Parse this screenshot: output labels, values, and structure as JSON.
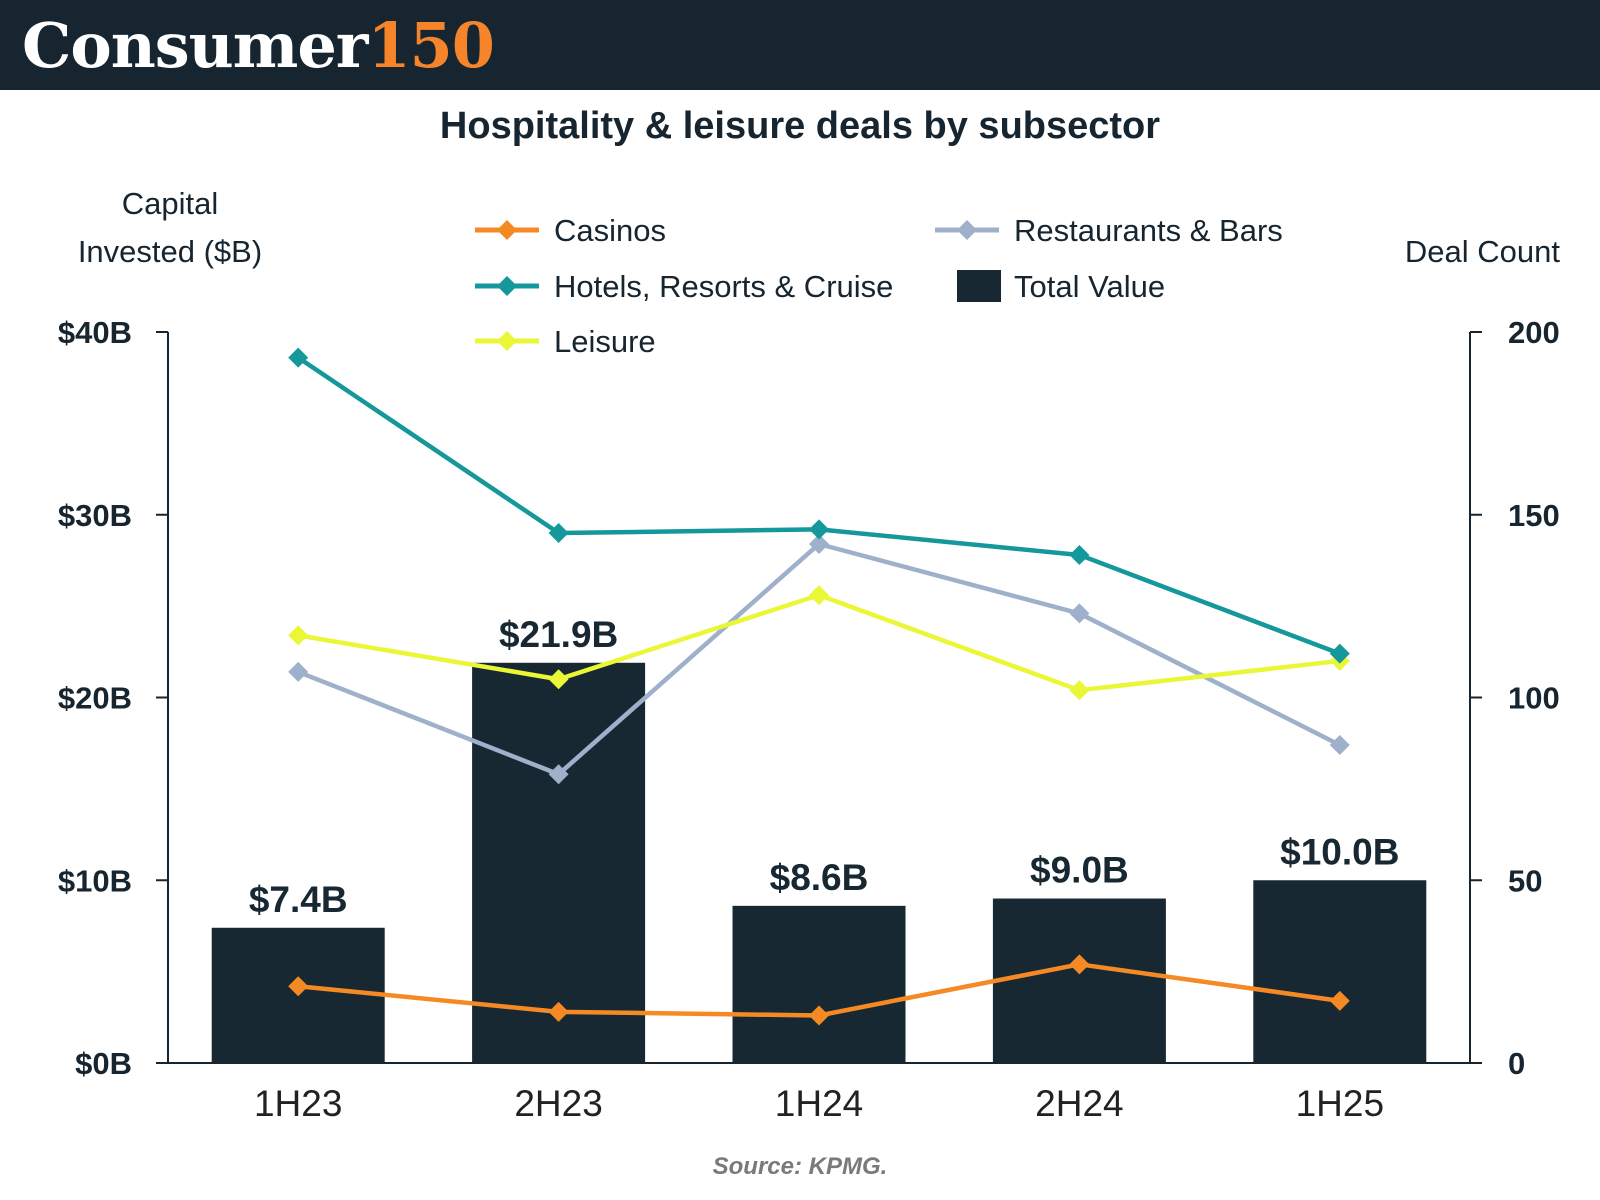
{
  "header": {
    "brand_name": "Consumer",
    "brand_number": "150"
  },
  "colors": {
    "header_bg": "#16252f",
    "brand_accent": "#f5842a",
    "bar": "#172833",
    "casinos": "#f58a24",
    "hotels": "#14989b",
    "leisure": "#eaf736",
    "restaurants": "#9fb0ca",
    "axis": "#16252f",
    "source": "#7a7a7a"
  },
  "chart_data": {
    "type": "bar",
    "title": "Hospitality & leisure deals by subsector",
    "left_axis_title_line1": "Capital",
    "left_axis_title_line2": "Invested ($B)",
    "right_axis_title": "Deal Count",
    "categories": [
      "1H23",
      "2H23",
      "1H24",
      "2H24",
      "1H25"
    ],
    "ylim": [
      0,
      40
    ],
    "y_ticks": [
      0,
      10,
      20,
      30,
      40
    ],
    "y_tick_labels": [
      "$0B",
      "$10B",
      "$20B",
      "$30B",
      "$40B"
    ],
    "y2lim": [
      0,
      200
    ],
    "y2_ticks": [
      0,
      50,
      100,
      150,
      200
    ],
    "y2_tick_labels": [
      "0",
      "50",
      "100",
      "150",
      "200"
    ],
    "bars": {
      "name": "Total Value",
      "values": [
        7.4,
        21.9,
        8.6,
        9.0,
        10.0
      ],
      "labels": [
        "$7.4B",
        "$21.9B",
        "$8.6B",
        "$9.0B",
        "$10.0B"
      ]
    },
    "series": [
      {
        "name": "Casinos",
        "key": "casinos",
        "axis": "right",
        "values": [
          21,
          14,
          13,
          27,
          17
        ]
      },
      {
        "name": "Hotels, Resorts & Cruise",
        "key": "hotels",
        "axis": "right",
        "values": [
          193,
          145,
          146,
          139,
          112
        ]
      },
      {
        "name": "Leisure",
        "key": "leisure",
        "axis": "right",
        "values": [
          117,
          105,
          128,
          102,
          110
        ]
      },
      {
        "name": "Restaurants & Bars",
        "key": "restaurants",
        "axis": "right",
        "values": [
          107,
          79,
          142,
          123,
          87
        ]
      }
    ],
    "legend": [
      "Casinos",
      "Restaurants & Bars",
      "Hotels, Resorts & Cruise",
      "Total Value",
      "Leisure"
    ],
    "source": "Source: KPMG."
  }
}
